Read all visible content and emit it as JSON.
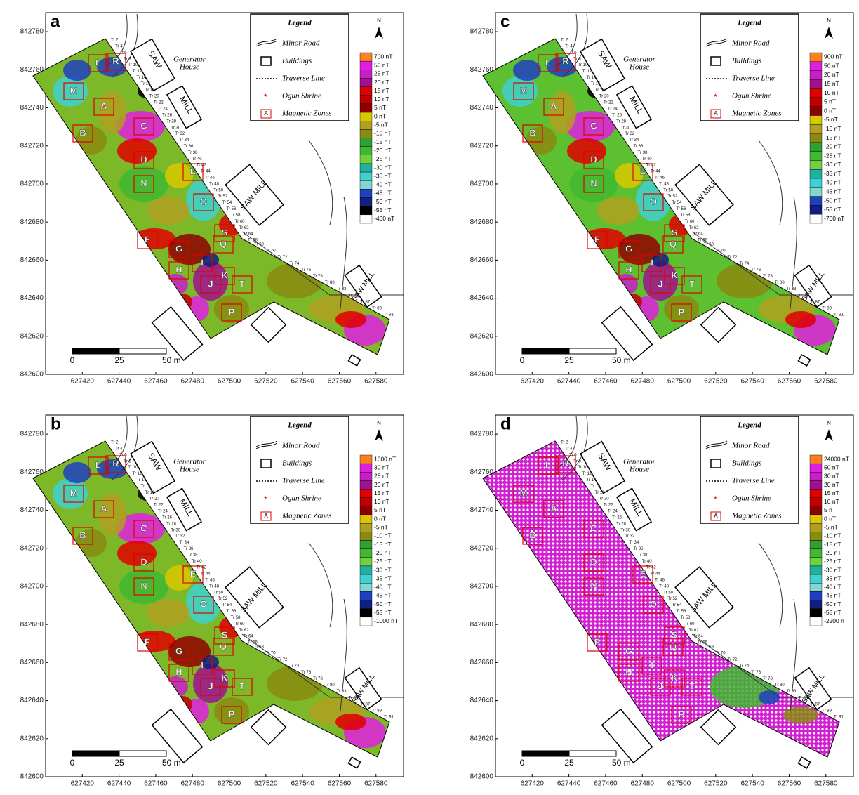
{
  "panels": [
    {
      "letter": "a",
      "scale_labels": [
        "700 nT",
        "50 nT",
        "25 nT",
        "20 nT",
        "15 nT",
        "10 nT",
        "5 nT",
        "0 nT",
        "-5 nT",
        "-10 nT",
        "-15 nT",
        "-20 nT",
        "-25 nT",
        "-30 nT",
        "-35 nT",
        "-40 nT",
        "-45 nT",
        "-50 nT",
        "-55 nT",
        "-400 nT"
      ]
    },
    {
      "letter": "b",
      "scale_labels": [
        "1800 nT",
        "30 nT",
        "25 nT",
        "20 nT",
        "15 nT",
        "10 nT",
        "5 nT",
        "0 nT",
        "-5 nT",
        "-10 nT",
        "-15 nT",
        "-20 nT",
        "-25 nT",
        "-30 nT",
        "-35 nT",
        "-40 nT",
        "-45 nT",
        "-50 nT",
        "-55 nT",
        "-1000 nT"
      ]
    },
    {
      "letter": "c",
      "scale_labels": [
        "900 nT",
        "50 nT",
        "20 nT",
        "15 nT",
        "10 nT",
        "5 nT",
        "0 nT",
        "-5 nT",
        "-10 nT",
        "-15 nT",
        "-20 nT",
        "-25 nT",
        "-30 nT",
        "-35 nT",
        "-40 nT",
        "-45 nT",
        "-50 nT",
        "-55 nT",
        "-700 nT"
      ]
    },
    {
      "letter": "d",
      "scale_labels": [
        "24000 nT",
        "50 nT",
        "30 nT",
        "20 nT",
        "15 nT",
        "10 nT",
        "5 nT",
        "0 nT",
        "-5 nT",
        "-10 nT",
        "-15 nT",
        "-20 nT",
        "-25 nT",
        "-30 nT",
        "-35 nT",
        "-40 nT",
        "-45 nT",
        "-50 nT",
        "-55 nT",
        "-2200 nT"
      ]
    }
  ],
  "scale_colors": [
    "#ff8020",
    "#e01ee0",
    "#c81ec8",
    "#a01090",
    "#e00000",
    "#c00000",
    "#900000",
    "#d8c800",
    "#b0a020",
    "#8a8a10",
    "#30a030",
    "#40b830",
    "#70d040",
    "#20b0a0",
    "#40d0d0",
    "#80d8d0",
    "#2040c0",
    "#102080",
    "#000000",
    "#ffffff"
  ],
  "axes": {
    "xlim": [
      627400,
      627595
    ],
    "ylim": [
      842600,
      842790
    ],
    "xticks": [
      627420,
      627440,
      627460,
      627480,
      627500,
      627520,
      627540,
      627560,
      627580
    ],
    "yticks": [
      842600,
      842620,
      842640,
      842660,
      842680,
      842700,
      842720,
      842740,
      842760,
      842780
    ]
  },
  "legend": {
    "title": "Legend",
    "items": [
      "Minor Road",
      "Buildings",
      "Traverse Line",
      "Ogun Shrine",
      "Magnetic Zones"
    ],
    "zone_key": "A"
  },
  "north": "N",
  "scale_bar": [
    "0",
    "25",
    "50 m"
  ],
  "site_labels": {
    "saw": "SAW",
    "mill": "MILL",
    "saw_mill": "SAW MILL",
    "generator": "Generator",
    "house": "House"
  },
  "zones": [
    "L",
    "R",
    "M",
    "A",
    "B",
    "C",
    "D",
    "E",
    "N",
    "O",
    "F",
    "G",
    "Q",
    "S",
    "H",
    "I",
    "J",
    "K",
    "T",
    "P"
  ],
  "traverses": [
    "Tr 2",
    "Tr 4",
    "Tr 6",
    "Tr 8",
    "Tr 10",
    "Tr 12",
    "Tr 14",
    "Tr 16",
    "Tr 18",
    "Tr 20",
    "Tr 22",
    "Tr 24",
    "Tr 26",
    "Tr 28",
    "Tr 30",
    "Tr 32",
    "Tr 34",
    "Tr 36",
    "Tr 38",
    "Tr 40",
    "Tr 42",
    "Tr 44",
    "Tr 46",
    "Tr 48",
    "Tr 50",
    "Tr 52",
    "Tr 54",
    "Tr 56",
    "Tr 58",
    "Tr 60",
    "Tr 62",
    "Tr 64",
    "Tr 66",
    "Tr 68",
    "Tr 70",
    "Tr 72",
    "Tr 74",
    "Tr 76",
    "Tr 78",
    "Tr 80",
    "Tr 83",
    "Tr 85",
    "Tr 87",
    "Tr 89",
    "Tr 91"
  ]
}
